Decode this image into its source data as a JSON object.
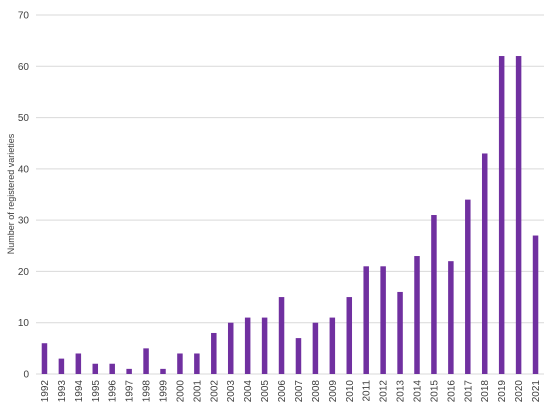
{
  "chart_data": {
    "type": "bar",
    "title": "",
    "xlabel": "",
    "ylabel": "Number of registered varieties",
    "ylim": [
      0,
      70
    ],
    "yticks": [
      0,
      10,
      20,
      30,
      40,
      50,
      60,
      70
    ],
    "grid": true,
    "legend": "none",
    "bar_color": "#7030a0",
    "grid_color": "#d9d9d9",
    "categories": [
      "1992",
      "1993",
      "1994",
      "1995",
      "1996",
      "1997",
      "1998",
      "1999",
      "2000",
      "2001",
      "2002",
      "2003",
      "2004",
      "2005",
      "2006",
      "2007",
      "2008",
      "2009",
      "2010",
      "2011",
      "2012",
      "2013",
      "2014",
      "2015",
      "2016",
      "2017",
      "2018",
      "2019",
      "2020",
      "2021"
    ],
    "values": [
      6,
      3,
      4,
      2,
      2,
      1,
      5,
      1,
      4,
      4,
      8,
      10,
      11,
      11,
      15,
      7,
      10,
      11,
      15,
      21,
      21,
      16,
      23,
      31,
      22,
      34,
      43,
      62,
      62,
      27
    ]
  }
}
